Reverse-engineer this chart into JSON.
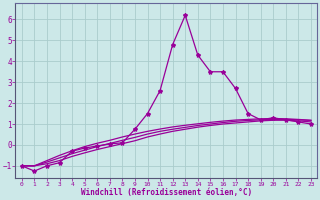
{
  "xlabel": "Windchill (Refroidissement éolien,°C)",
  "bg_color": "#cce8e8",
  "grid_color": "#aacccc",
  "line_color": "#990099",
  "xlim": [
    -0.5,
    23.5
  ],
  "ylim": [
    -1.6,
    6.8
  ],
  "yticks": [
    -1,
    0,
    1,
    2,
    3,
    4,
    5,
    6
  ],
  "xticks": [
    0,
    1,
    2,
    3,
    4,
    5,
    6,
    7,
    8,
    9,
    10,
    11,
    12,
    13,
    14,
    15,
    16,
    17,
    18,
    19,
    20,
    21,
    22,
    23
  ],
  "series1_x": [
    0,
    1,
    2,
    3,
    4,
    5,
    6,
    7,
    8,
    9,
    10,
    11,
    12,
    13,
    14,
    15,
    16,
    17,
    18,
    19,
    20,
    21,
    22,
    23
  ],
  "series1_y": [
    -1.0,
    -1.25,
    -1.0,
    -0.85,
    -0.3,
    -0.15,
    -0.05,
    0.05,
    0.1,
    0.75,
    1.5,
    2.6,
    4.8,
    6.2,
    4.3,
    3.5,
    3.5,
    2.7,
    1.5,
    1.2,
    1.3,
    1.2,
    1.1,
    1.0
  ],
  "series2_x": [
    0,
    1,
    2,
    3,
    4,
    5,
    6,
    7,
    8,
    9,
    10,
    11,
    12,
    13,
    14,
    15,
    16,
    17,
    18,
    19,
    20,
    21,
    22,
    23
  ],
  "series2_y": [
    -1.0,
    -1.0,
    -0.9,
    -0.75,
    -0.55,
    -0.38,
    -0.22,
    -0.08,
    0.06,
    0.2,
    0.38,
    0.52,
    0.65,
    0.75,
    0.85,
    0.93,
    1.0,
    1.05,
    1.1,
    1.15,
    1.18,
    1.18,
    1.15,
    1.1
  ],
  "series3_x": [
    0,
    1,
    2,
    3,
    4,
    5,
    6,
    7,
    8,
    9,
    10,
    11,
    12,
    13,
    14,
    15,
    16,
    17,
    18,
    19,
    20,
    21,
    22,
    23
  ],
  "series3_y": [
    -1.0,
    -1.0,
    -0.82,
    -0.62,
    -0.42,
    -0.25,
    -0.08,
    0.07,
    0.22,
    0.36,
    0.52,
    0.65,
    0.75,
    0.84,
    0.93,
    1.0,
    1.07,
    1.13,
    1.17,
    1.2,
    1.22,
    1.22,
    1.2,
    1.17
  ],
  "series4_x": [
    0,
    1,
    2,
    3,
    4,
    5,
    6,
    7,
    8,
    9,
    10,
    11,
    12,
    13,
    14,
    15,
    16,
    17,
    18,
    19,
    20,
    21,
    22,
    23
  ],
  "series4_y": [
    -1.0,
    -1.0,
    -0.75,
    -0.5,
    -0.28,
    -0.08,
    0.08,
    0.22,
    0.38,
    0.52,
    0.65,
    0.76,
    0.86,
    0.94,
    1.01,
    1.08,
    1.14,
    1.19,
    1.22,
    1.25,
    1.26,
    1.25,
    1.22,
    1.18
  ]
}
